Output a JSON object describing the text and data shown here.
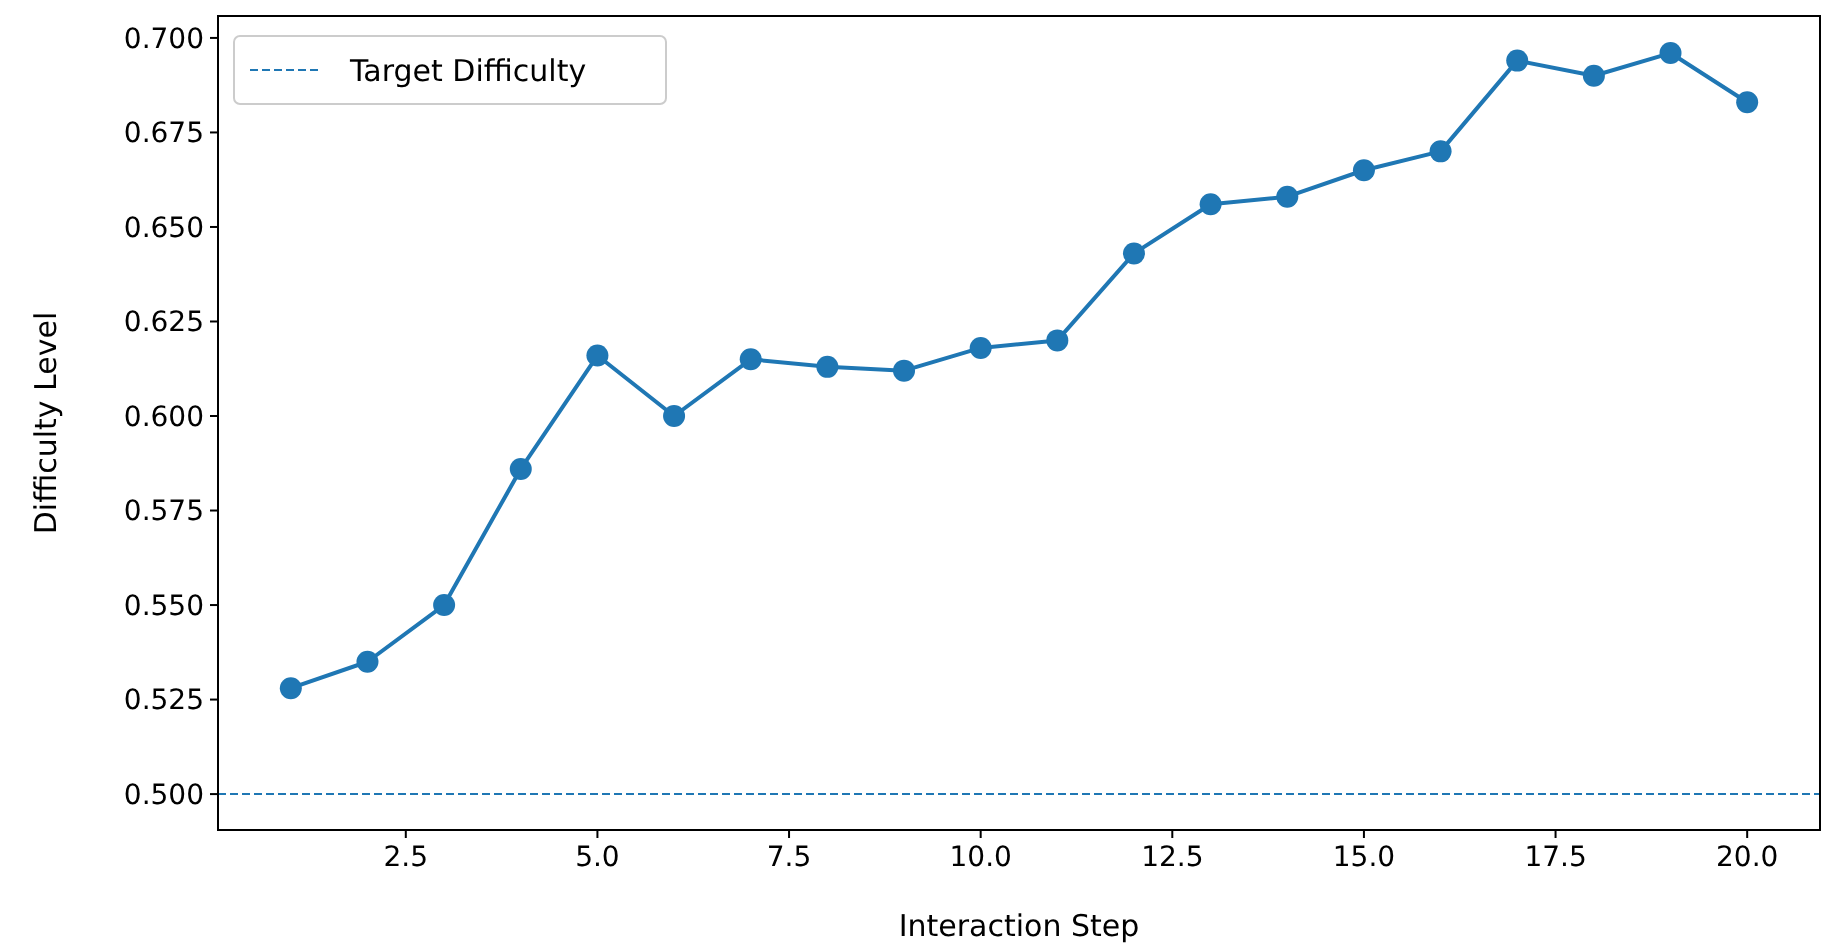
{
  "chart_data": {
    "type": "line",
    "xlabel": "Interaction Step",
    "ylabel": "Difficulty Level",
    "x": [
      1,
      2,
      3,
      4,
      5,
      6,
      7,
      8,
      9,
      10,
      11,
      12,
      13,
      14,
      15,
      16,
      17,
      18,
      19,
      20
    ],
    "series": [
      {
        "color": "#1f77b4",
        "values": [
          0.528,
          0.535,
          0.55,
          0.586,
          0.616,
          0.6,
          0.615,
          0.613,
          0.612,
          0.618,
          0.62,
          0.643,
          0.656,
          0.658,
          0.665,
          0.67,
          0.694,
          0.69,
          0.696,
          0.683
        ]
      }
    ],
    "xlim": [
      0.05,
      20.95
    ],
    "xticks": [
      {
        "value": 2.5,
        "label": "2.5"
      },
      {
        "value": 5,
        "label": "5.0"
      },
      {
        "value": 7.5,
        "label": "7.5"
      },
      {
        "value": 10,
        "label": "10.0"
      },
      {
        "value": 12.5,
        "label": "12.5"
      },
      {
        "value": 15,
        "label": "15.0"
      },
      {
        "value": 17.5,
        "label": "17.5"
      },
      {
        "value": 20,
        "label": "20.0"
      }
    ],
    "ylim": [
      0.4905,
      0.7058
    ],
    "yticks": [
      {
        "value": 0.5,
        "label": "0.500"
      },
      {
        "value": 0.525,
        "label": "0.525"
      },
      {
        "value": 0.55,
        "label": "0.550"
      },
      {
        "value": 0.575,
        "label": "0.575"
      },
      {
        "value": 0.6,
        "label": "0.600"
      },
      {
        "value": 0.625,
        "label": "0.625"
      },
      {
        "value": 0.65,
        "label": "0.650"
      },
      {
        "value": 0.675,
        "label": "0.675"
      },
      {
        "value": 0.7,
        "label": "0.700"
      }
    ],
    "ref_lines": [
      {
        "axis": "y",
        "value": 0.5,
        "label": "Target Difficulty",
        "color": "#1f77b4",
        "line_style": "dashed"
      }
    ],
    "marker": "circle",
    "legend": "top left",
    "grid": false
  }
}
